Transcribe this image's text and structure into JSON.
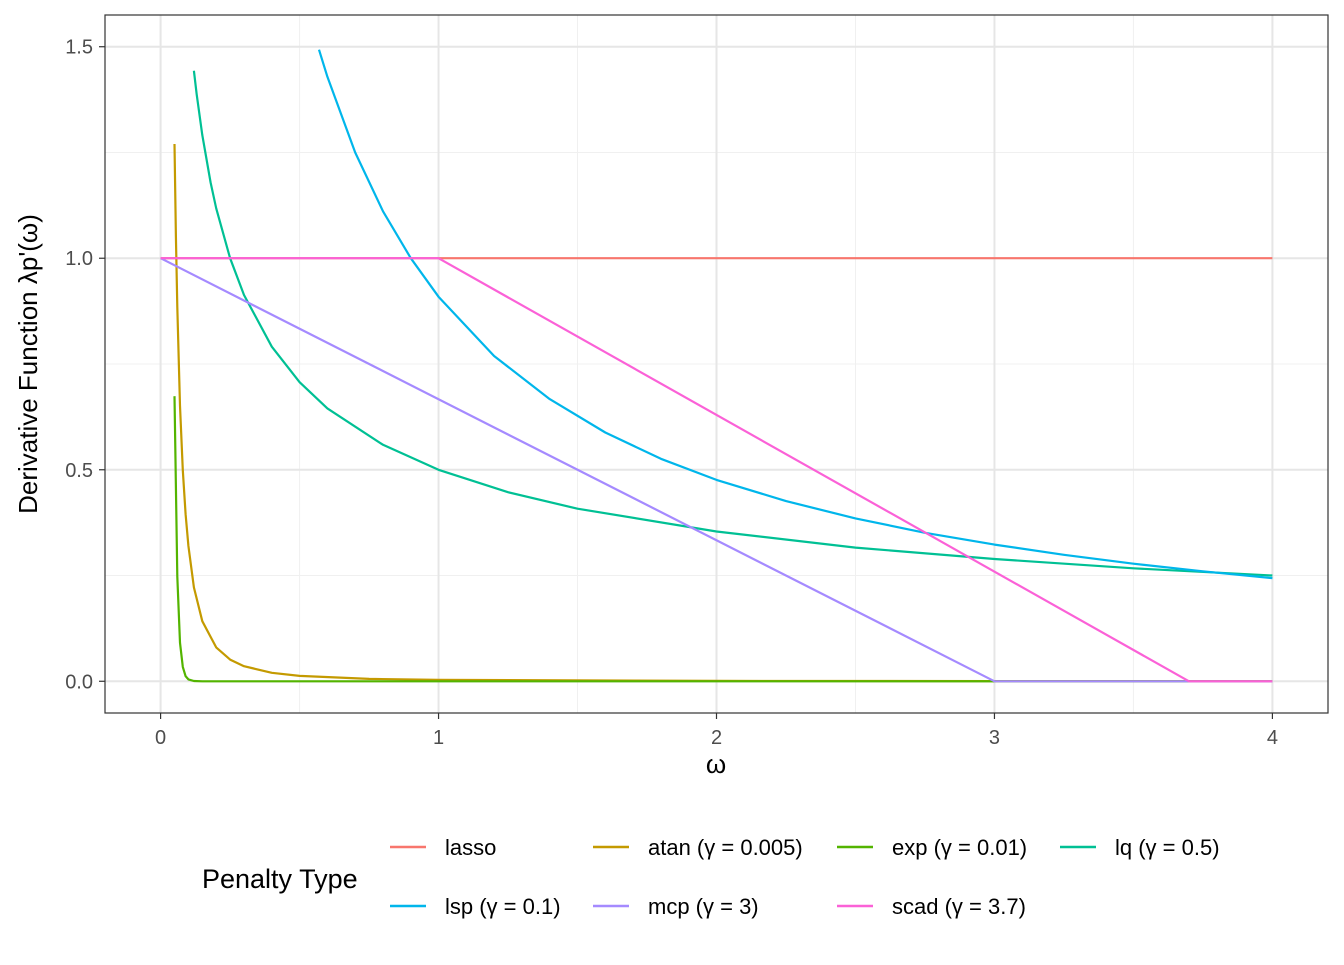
{
  "chart_data": {
    "type": "line",
    "title": "",
    "xlabel": "ω",
    "ylabel": "Derivative Function λp'(ω)",
    "xlim": [
      -0.2,
      4.2
    ],
    "ylim": [
      -0.075,
      1.575
    ],
    "x_ticks": [
      0,
      1,
      2,
      3,
      4
    ],
    "x_tick_labels": [
      "0",
      "1",
      "2",
      "3",
      "4"
    ],
    "y_ticks": [
      0,
      0.5,
      1,
      1.5
    ],
    "y_tick_labels": [
      "0.0",
      "0.5",
      "1.0",
      "1.5"
    ],
    "grid": true,
    "legend": {
      "title": "Penalty Type",
      "placement": "bottom"
    },
    "series": [
      {
        "name": "lasso",
        "color": "#F8766D",
        "x": [
          0,
          4
        ],
        "y": [
          1,
          1
        ]
      },
      {
        "name": "atan (γ = 0.005)",
        "color": "#C49A00",
        "x": [
          0.05,
          0.055,
          0.06,
          0.07,
          0.08,
          0.09,
          0.1,
          0.12,
          0.15,
          0.2,
          0.25,
          0.3,
          0.4,
          0.5,
          0.75,
          1,
          2,
          3,
          4
        ],
        "y": [
          1.27,
          1.052,
          0.885,
          0.651,
          0.499,
          0.395,
          0.32,
          0.222,
          0.142,
          0.08,
          0.0513,
          0.0356,
          0.02,
          0.0128,
          0.0057,
          0.0032,
          0.0008,
          0.00036,
          0.0002
        ]
      },
      {
        "name": "exp (γ = 0.01)",
        "color": "#53B400",
        "x": [
          0.05,
          0.06,
          0.07,
          0.08,
          0.09,
          0.1,
          0.12,
          0.15,
          4
        ],
        "y": [
          0.674,
          0.248,
          0.091,
          0.034,
          0.012,
          0.0045,
          0.0006,
          0,
          0
        ]
      },
      {
        "name": "lq (γ = 0.5)",
        "color": "#00C094",
        "x": [
          0.12,
          0.13,
          0.15,
          0.18,
          0.2,
          0.25,
          0.3,
          0.4,
          0.5,
          0.6,
          0.8,
          1,
          1.25,
          1.5,
          2,
          2.5,
          3,
          3.5,
          4
        ],
        "y": [
          1.443,
          1.387,
          1.291,
          1.179,
          1.118,
          1.0,
          0.913,
          0.791,
          0.707,
          0.645,
          0.559,
          0.5,
          0.447,
          0.408,
          0.354,
          0.316,
          0.289,
          0.267,
          0.25
        ]
      },
      {
        "name": "lsp (γ = 0.1)",
        "color": "#00B6EB",
        "x": [
          0.57,
          0.6,
          0.7,
          0.8,
          0.9,
          1,
          1.2,
          1.4,
          1.6,
          1.8,
          2,
          2.25,
          2.5,
          2.75,
          3,
          3.25,
          3.5,
          3.75,
          4
        ],
        "y": [
          1.493,
          1.429,
          1.25,
          1.111,
          1.0,
          0.909,
          0.769,
          0.667,
          0.588,
          0.526,
          0.476,
          0.426,
          0.385,
          0.351,
          0.323,
          0.299,
          0.278,
          0.26,
          0.244
        ]
      },
      {
        "name": "mcp (γ = 3)",
        "color": "#A58AFF",
        "x": [
          0,
          3,
          4
        ],
        "y": [
          1,
          0,
          0
        ]
      },
      {
        "name": "scad (γ = 3.7)",
        "color": "#FB61D7",
        "x": [
          0,
          1,
          3.7,
          4
        ],
        "y": [
          1,
          1,
          0,
          0
        ]
      }
    ]
  }
}
